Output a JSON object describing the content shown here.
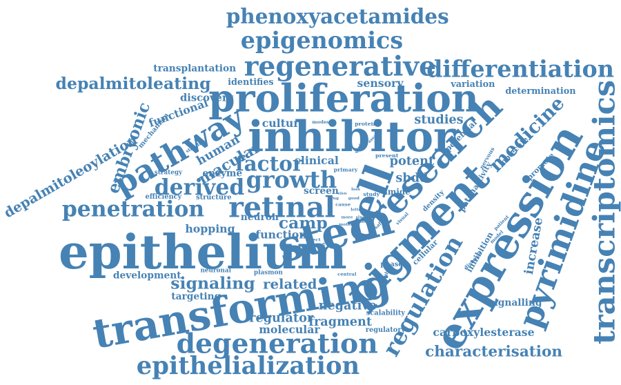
{
  "color": "#4682b4",
  "words": [
    {
      "text": "phenoxyacetamides",
      "weight": 30
    },
    {
      "text": "epigenomics",
      "weight": 34
    },
    {
      "text": "regenerative",
      "weight": 40
    },
    {
      "text": "differentiation",
      "weight": 34
    },
    {
      "text": "transplantation",
      "weight": 14
    },
    {
      "text": "depalmitoleating",
      "weight": 24
    },
    {
      "text": "identifies",
      "weight": 13
    },
    {
      "text": "proliferation",
      "weight": 56
    },
    {
      "text": "sensory",
      "weight": 16
    },
    {
      "text": "variation",
      "weight": 13
    },
    {
      "text": "determination",
      "weight": 13
    },
    {
      "text": "transcriptomics",
      "weight": 44
    },
    {
      "text": "discovery",
      "weight": 15
    },
    {
      "text": "studies",
      "weight": 18
    },
    {
      "text": "medicine",
      "weight": 28
    },
    {
      "text": "embryonic",
      "weight": 24
    },
    {
      "text": "functional",
      "weight": 16
    },
    {
      "text": "pathway",
      "weight": 46
    },
    {
      "text": "inhibitor",
      "weight": 62
    },
    {
      "text": "culture",
      "weight": 16
    },
    {
      "text": "research",
      "weight": 52
    },
    {
      "text": "depalmitoleoylation",
      "weight": 20
    },
    {
      "text": "mechanism",
      "weight": 10
    },
    {
      "text": "human",
      "weight": 18
    },
    {
      "text": "macular",
      "weight": 22
    },
    {
      "text": "factor",
      "weight": 30
    },
    {
      "text": "clinical",
      "weight": 16
    },
    {
      "text": "potent",
      "weight": 18
    },
    {
      "text": "potential",
      "weight": 12
    },
    {
      "text": "molecule",
      "weight": 11
    },
    {
      "text": "promote",
      "weight": 11
    },
    {
      "text": "expression",
      "weight": 62
    },
    {
      "text": "pyrimidine",
      "weight": 48
    },
    {
      "text": "enzyme",
      "weight": 14
    },
    {
      "text": "strategy",
      "weight": 9
    },
    {
      "text": "derived",
      "weight": 32
    },
    {
      "text": "growth",
      "weight": 34
    },
    {
      "text": "sbdd",
      "weight": 18
    },
    {
      "text": "cell",
      "weight": 58
    },
    {
      "text": "pigment",
      "weight": 58
    },
    {
      "text": "penetration",
      "weight": 32
    },
    {
      "text": "retinal",
      "weight": 42
    },
    {
      "text": "screen",
      "weight": 14
    },
    {
      "text": "amide",
      "weight": 12
    },
    {
      "text": "patch",
      "weight": 12
    },
    {
      "text": "activity",
      "weight": 11
    },
    {
      "text": "efficiency",
      "weight": 10
    },
    {
      "text": "structure",
      "weight": 10
    },
    {
      "text": "camp",
      "weight": 24
    },
    {
      "text": "stem",
      "weight": 64
    },
    {
      "text": "hopping",
      "weight": 16
    },
    {
      "text": "neuron",
      "weight": 14
    },
    {
      "text": "function",
      "weight": 16
    },
    {
      "text": "epithelium",
      "weight": 70
    },
    {
      "text": "density",
      "weight": 10
    },
    {
      "text": "increase",
      "weight": 18
    },
    {
      "text": "inhibition",
      "weight": 12
    },
    {
      "text": "cellular",
      "weight": 11
    },
    {
      "text": "phase",
      "weight": 10
    },
    {
      "text": "development",
      "weight": 14
    },
    {
      "text": "neuronal",
      "weight": 9
    },
    {
      "text": "plasmon",
      "weight": 9
    },
    {
      "text": "signaling",
      "weight": 24
    },
    {
      "text": "related",
      "weight": 20
    },
    {
      "text": "targeting",
      "weight": 14
    },
    {
      "text": "transforming",
      "weight": 60
    },
    {
      "text": "regulation",
      "weight": 34
    },
    {
      "text": "signalling",
      "weight": 14
    },
    {
      "text": "negative",
      "weight": 18
    },
    {
      "text": "scalability",
      "weight": 10
    },
    {
      "text": "regulator",
      "weight": 18
    },
    {
      "text": "fragment",
      "weight": 18
    },
    {
      "text": "molecular",
      "weight": 16
    },
    {
      "text": "regulatory",
      "weight": 10
    },
    {
      "text": "carboxylesterase",
      "weight": 16
    },
    {
      "text": "degeneration",
      "weight": 40
    },
    {
      "text": "characterisation",
      "weight": 22
    },
    {
      "text": "epithelialization",
      "weight": 36
    },
    {
      "text": "protein",
      "weight": 8
    },
    {
      "text": "modest",
      "weight": 7
    },
    {
      "text": "variant",
      "weight": 7
    },
    {
      "text": "present",
      "weight": 8
    },
    {
      "text": "nervous",
      "weight": 8
    },
    {
      "text": "primary",
      "weight": 8
    },
    {
      "text": "study",
      "weight": 8
    },
    {
      "text": "visual",
      "weight": 7
    },
    {
      "text": "safety",
      "weight": 7
    },
    {
      "text": "model",
      "weight": 7
    },
    {
      "text": "patient",
      "weight": 7
    },
    {
      "text": "disease",
      "weight": 8
    },
    {
      "text": "effect",
      "weight": 7
    },
    {
      "text": "system",
      "weight": 7
    },
    {
      "text": "central",
      "weight": 7
    },
    {
      "text": "suitable",
      "weight": 7
    },
    {
      "text": "cause",
      "weight": 7
    },
    {
      "text": "letter",
      "weight": 6
    },
    {
      "text": "single",
      "weight": 6
    },
    {
      "text": "motor",
      "weight": 6
    },
    {
      "text": "good",
      "weight": 6
    },
    {
      "text": "more",
      "weight": 6
    },
    {
      "text": "tool",
      "weight": 6
    },
    {
      "text": "stability",
      "weight": 7
    },
    {
      "text": "assay",
      "weight": 6
    },
    {
      "text": "drug",
      "weight": 6
    },
    {
      "text": "vivo",
      "weight": 6
    },
    {
      "text": "loss",
      "weight": 6
    }
  ]
}
